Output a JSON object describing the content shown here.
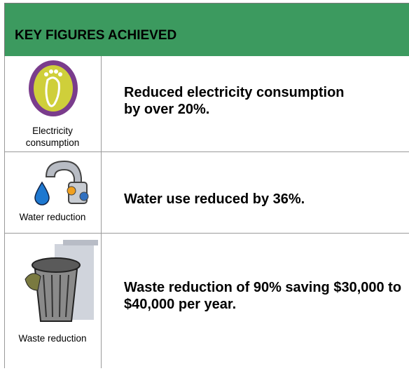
{
  "header": {
    "title": "KEY FIGURES ACHIEVED"
  },
  "rows": [
    {
      "icon_label": "Electricity consumption",
      "text": "Reduced electricity consumption by over 20%."
    },
    {
      "icon_label": "Water reduction",
      "text": "Water use reduced by 36%."
    },
    {
      "icon_label": "Waste reduction",
      "text": "Waste reduction of 90% saving $30,000 to $40,000 per year."
    }
  ]
}
